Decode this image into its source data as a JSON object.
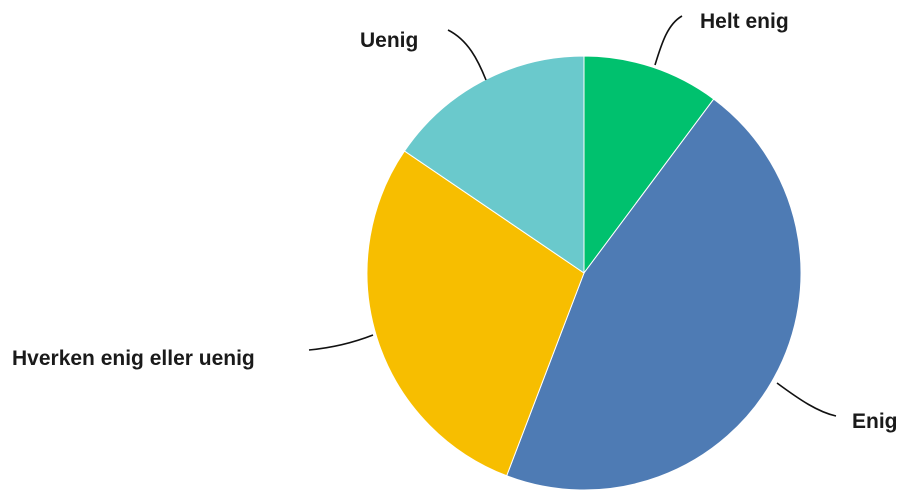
{
  "chart_data": {
    "type": "pie",
    "title": "",
    "start_angle_deg": 0,
    "direction": "clockwise",
    "slices": [
      {
        "label": "Helt enig",
        "value": 10.2,
        "color": "#00C16E"
      },
      {
        "label": "Enig",
        "value": 45.6,
        "color": "#4E7BB4"
      },
      {
        "label": "Hverken enig eller uenig",
        "value": 28.7,
        "color": "#F7BE00"
      },
      {
        "label": "Uenig",
        "value": 15.5,
        "color": "#6AC9CC"
      }
    ],
    "legend": "none"
  }
}
